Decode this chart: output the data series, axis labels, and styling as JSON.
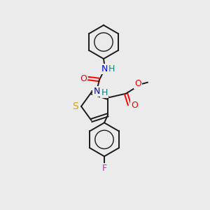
{
  "background_color": "#ebebeb",
  "bond_color": "#1a1a1a",
  "atom_colors": {
    "N": "#0000ff",
    "H": "#008b8b",
    "O": "#ff0000",
    "S": "#ccaa00",
    "F": "#ff00ff",
    "C": "#1a1a1a"
  },
  "figsize": [
    3.0,
    3.0
  ],
  "dpi": 100
}
